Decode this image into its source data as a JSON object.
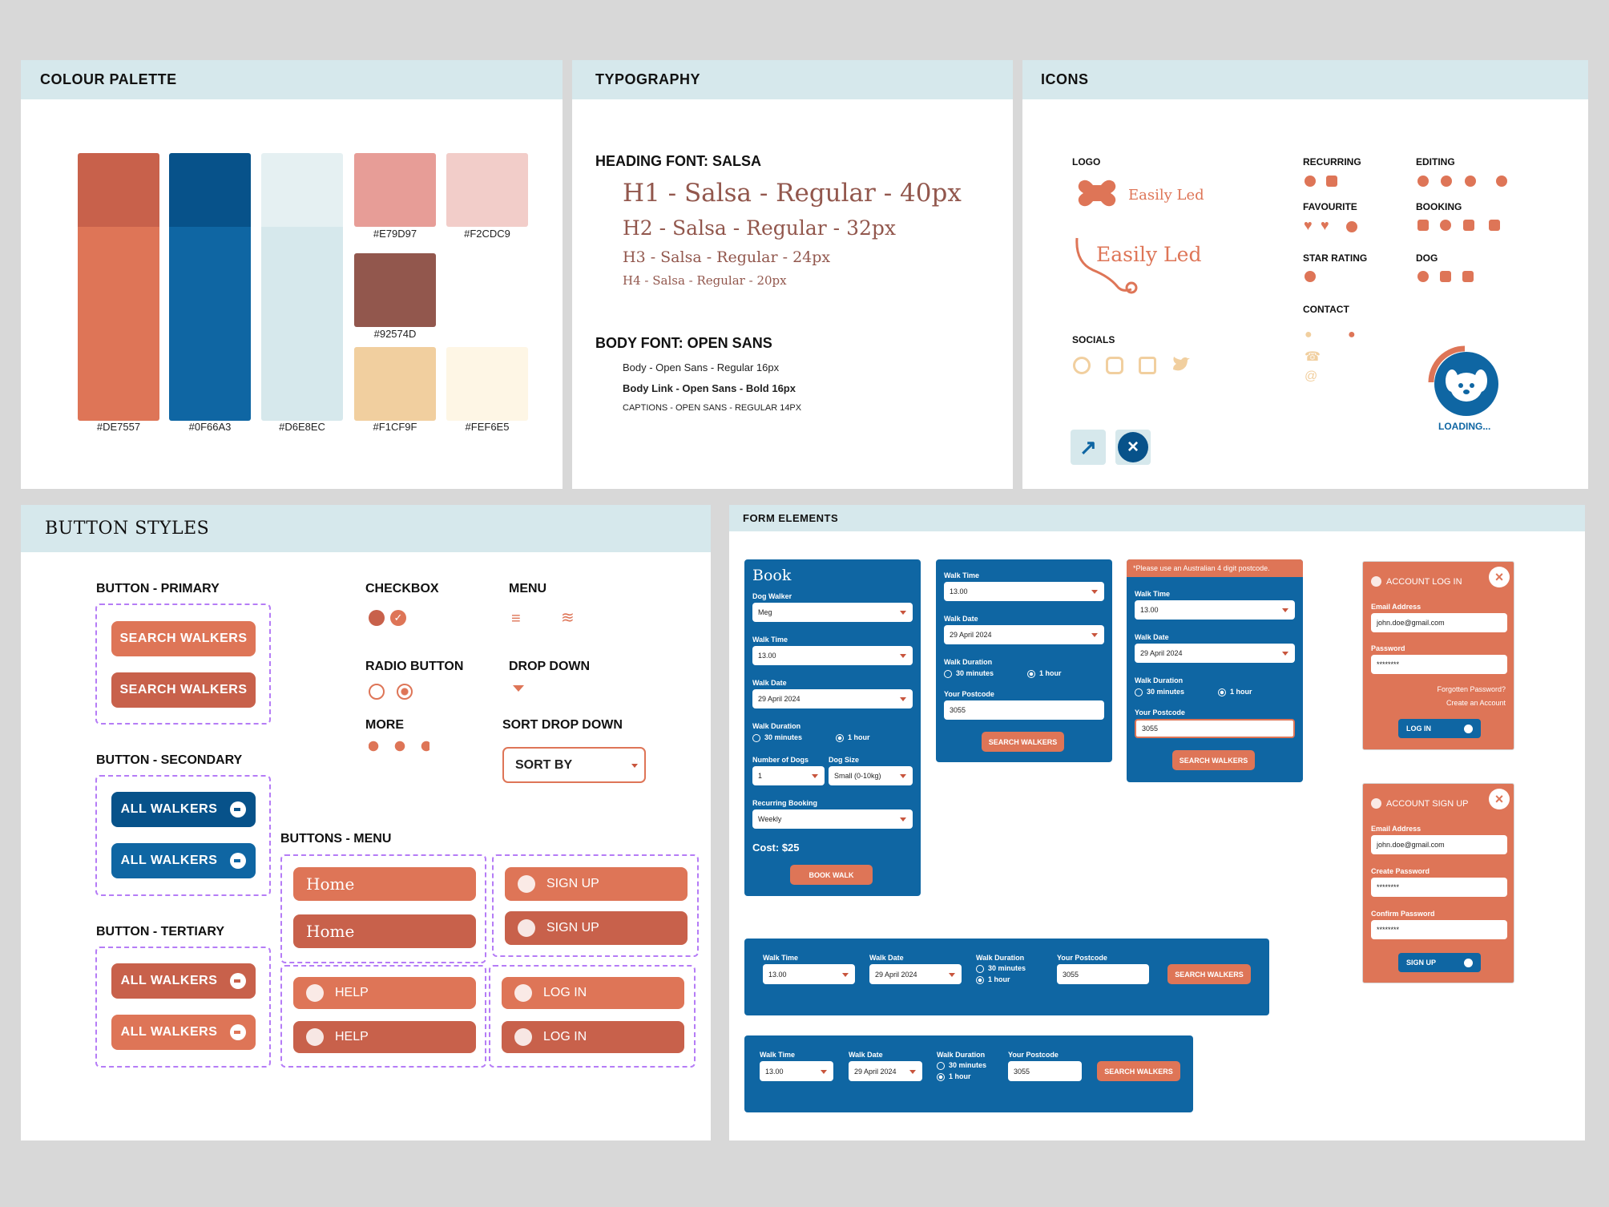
{
  "palette": {
    "title": "COLOUR PALETTE",
    "colors": {
      "c1": "#DE7557",
      "c2": "#0F66A3",
      "c3": "#D6E8EC",
      "c4": "#E79D97",
      "c5": "#F2CDC9",
      "c6": "#92574D",
      "c7": "#F1CF9F",
      "c8": "#FEF6E5"
    }
  },
  "typography": {
    "title": "TYPOGRAPHY",
    "heading_font": "HEADING FONT: SALSA",
    "h1": "H1 - Salsa - Regular - 40px",
    "h2": "H2 - Salsa - Regular - 32px",
    "h3": "H3 - Salsa - Regular - 24px",
    "h4": "H4 - Salsa - Regular - 20px",
    "body_font": "BODY FONT: OPEN SANS",
    "body": "Body - Open Sans - Regular 16px",
    "body_link": "Body Link - Open Sans - Bold 16px",
    "captions": "CAPTIONS - OPEN SANS - REGULAR 14PX"
  },
  "icons": {
    "title": "ICONS",
    "logo_label": "LOGO",
    "logo_text": "Easily Led",
    "socials": "SOCIALS",
    "recurring": "RECURRING",
    "editing": "EDITING",
    "favourite": "FAVOURITE",
    "booking": "BOOKING",
    "star_rating": "STAR RATING",
    "dog": "DOG",
    "contact": "CONTACT",
    "loading": "LOADING..."
  },
  "buttons": {
    "title": "BUTTON STYLES",
    "primary": "BUTTON - PRIMARY",
    "search_walkers": "SEARCH WALKERS",
    "secondary": "BUTTON - SECONDARY",
    "all_walkers": "ALL WALKERS",
    "tertiary": "BUTTON - TERTIARY",
    "checkbox": "CHECKBOX",
    "menu": "MENU",
    "radio": "RADIO BUTTON",
    "dropdown": "DROP DOWN",
    "more": "MORE",
    "sort_dropdown": "SORT DROP DOWN",
    "sort_by": "SORT BY",
    "buttons_menu": "BUTTONS - MENU",
    "home": "Home",
    "sign_up": "SIGN UP",
    "help": "HELP",
    "log_in": "LOG IN"
  },
  "forms": {
    "title": "FORM ELEMENTS",
    "book": "Book",
    "dog_walker": "Dog Walker",
    "walker_value": "Meg",
    "walk_time": "Walk Time",
    "time_value": "13.00",
    "walk_date": "Walk Date",
    "date_value": "29 April 2024",
    "walk_duration": "Walk Duration",
    "d30": "30 minutes",
    "d60": "1 hour",
    "num_dogs": "Number of Dogs",
    "num_dogs_value": "1",
    "dog_size": "Dog Size",
    "dog_size_value": "Small (0-10kg)",
    "recurring": "Recurring Booking",
    "recurring_value": "Weekly",
    "cost": "Cost: $25",
    "book_walk": "BOOK WALK",
    "postcode": "Your Postcode",
    "postcode_value": "3055",
    "search_walkers": "SEARCH WALKERS",
    "error": "*Please use an Australian 4 digit postcode.",
    "login_title": "ACCOUNT LOG IN",
    "email": "Email Address",
    "email_value": "john.doe@gmail.com",
    "password": "Password",
    "password_value": "********",
    "forgot": "Forgotten Password?",
    "create": "Create an Account",
    "log_in": "LOG IN",
    "signup_title": "ACCOUNT SIGN UP",
    "create_password": "Create Password",
    "confirm_password": "Confirm Password",
    "sign_up": "SIGN UP"
  }
}
